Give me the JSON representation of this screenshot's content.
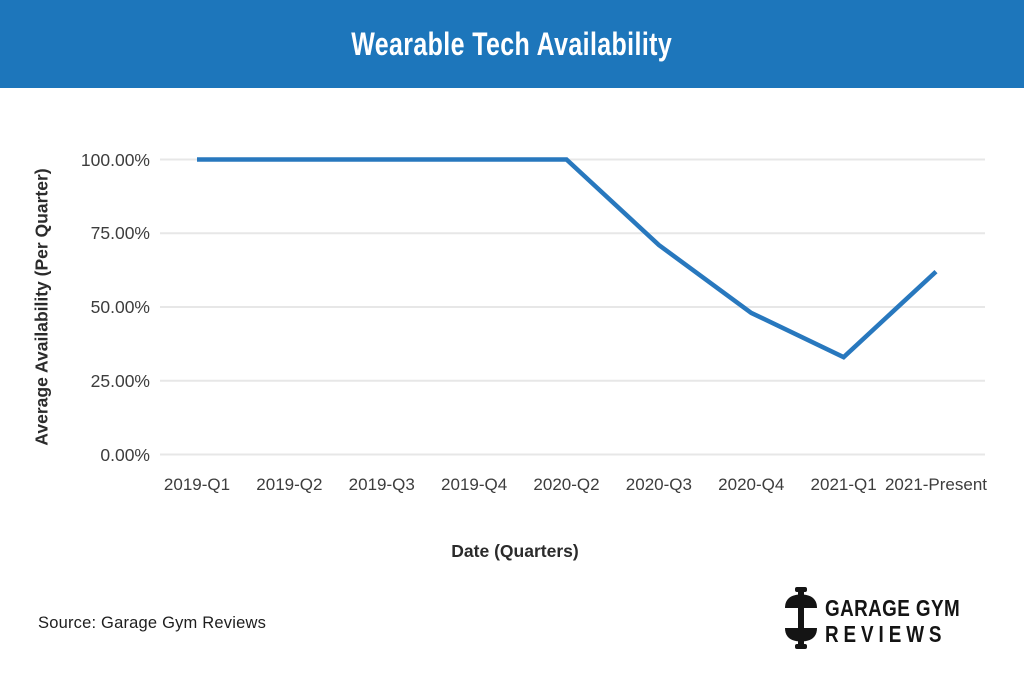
{
  "header": {
    "bg_color": "#1d76bb",
    "text_color": "#ffffff"
  },
  "chart_data": {
    "type": "line",
    "title": "Wearable Tech Availability",
    "categories": [
      "2019-Q1",
      "2019-Q2",
      "2019-Q3",
      "2019-Q4",
      "2020-Q2",
      "2020-Q3",
      "2020-Q4",
      "2021-Q1",
      "2021-Present"
    ],
    "values": [
      100,
      100,
      100,
      100,
      100,
      71,
      48,
      33,
      62
    ],
    "xlabel": "Date (Quarters)",
    "ylabel": "Average Availability (Per Quarter)",
    "ylim": [
      0,
      100
    ],
    "ytick_values": [
      100,
      75,
      50,
      25,
      0
    ],
    "ytick_labels": [
      "100.00%",
      "75.00%",
      "50.00%",
      "25.00%",
      "0.00%"
    ],
    "grid": true,
    "legend": "none",
    "line_color": "#2878be",
    "gridline_color": "#e7e7e7"
  },
  "footer": {
    "source": "Source: Garage Gym Reviews",
    "logo": {
      "icon": "barbell-icon",
      "line1": "GARAGE GYM",
      "line2": "REVIEWS"
    }
  }
}
